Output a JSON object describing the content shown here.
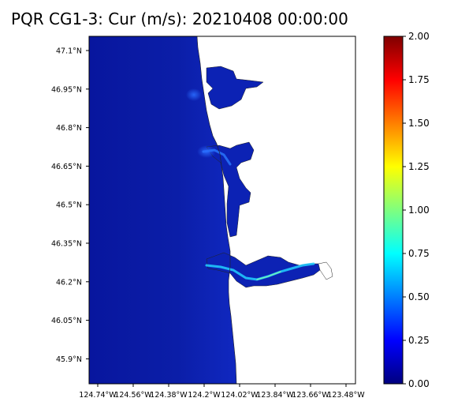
{
  "title": "PQR CG1-3: Cur (m/s): 20210408 00:00:00",
  "latitude_ticks": [
    "47.1°N",
    "46.95°N",
    "46.8°N",
    "46.65°N",
    "46.5°N",
    "46.35°N",
    "46.2°N",
    "46.05°N",
    "45.9°N"
  ],
  "longitude_ticks": [
    "124.74°W",
    "124.56°W",
    "124.38°W",
    "124.2°W",
    "124.02°W",
    "123.84°W",
    "123.66°W",
    "123.48°W"
  ],
  "colorbar": {
    "min": 0.0,
    "max": 2.0,
    "ticks": [
      "0.00",
      "0.25",
      "0.50",
      "0.75",
      "1.00",
      "1.25",
      "1.50",
      "1.75",
      "2.00"
    ],
    "colormap": "jet",
    "colors": [
      "#00007f",
      "#0000ff",
      "#007fff",
      "#00ffff",
      "#7fff7f",
      "#ffff00",
      "#ff7f00",
      "#ff0000",
      "#7f0000"
    ]
  },
  "colors": {
    "ocean": "#0a1aa8",
    "deep_ocean": "#061296",
    "current_highlight": "#22d0ff",
    "land": "#ffffff",
    "coastline": "#222222"
  }
}
